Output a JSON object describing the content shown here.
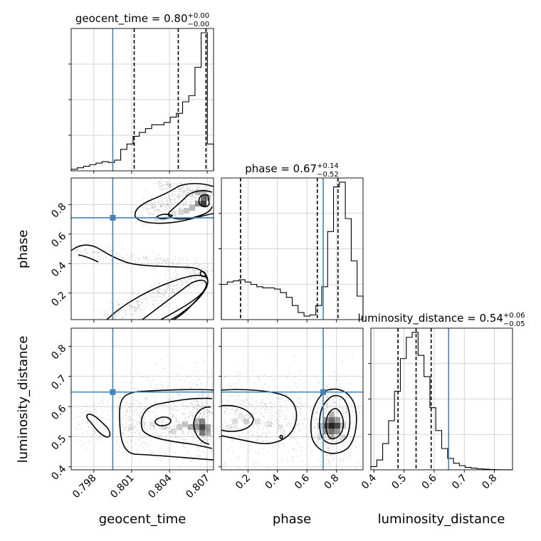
{
  "chart_data": {
    "type": "corner",
    "parameters": [
      {
        "key": "geocent_time",
        "label": "geocent_time",
        "range": [
          0.7962,
          0.8075
        ],
        "ticks": [
          0.798,
          0.801,
          0.804,
          0.807
        ],
        "tick_labels": [
          "0.798",
          "0.801",
          "0.804",
          "0.807"
        ],
        "truth": 0.7995,
        "quantiles": [
          0.8012,
          0.8047,
          0.8069
        ],
        "title": {
          "name": "geocent_time",
          "median": "0.80",
          "plus": "+0.00",
          "minus": "−0.00"
        }
      },
      {
        "key": "phase",
        "label": "phase",
        "range": [
          0.02,
          0.98
        ],
        "ticks": [
          0.2,
          0.4,
          0.6,
          0.8
        ],
        "tick_labels": [
          "0.2",
          "0.4",
          "0.6",
          "0.8"
        ],
        "truth": 0.71,
        "quantiles": [
          0.15,
          0.67,
          0.81
        ],
        "title": {
          "name": "phase",
          "median": "0.67",
          "plus": "+0.14",
          "minus": "−0.52"
        }
      },
      {
        "key": "luminosity_distance",
        "label": "luminosity_distance",
        "range": [
          0.39,
          0.86
        ],
        "ticks": [
          0.4,
          0.5,
          0.6,
          0.7,
          0.8
        ],
        "tick_labels": [
          "0.4",
          "0.5",
          "0.6",
          "0.7",
          "0.8"
        ],
        "truth": 0.648,
        "quantiles": [
          0.48,
          0.54,
          0.59
        ],
        "title": {
          "name": "luminosity_distance",
          "median": "0.54",
          "plus": "+0.06",
          "minus": "−0.05"
        }
      }
    ],
    "histograms": {
      "geocent_time": {
        "counts": [
          0.02,
          0.04,
          0.06,
          0.08,
          0.1,
          0.12,
          0.11,
          0.14,
          0.28,
          0.35,
          0.45,
          0.5,
          0.55,
          0.6,
          0.6,
          0.63,
          0.7,
          0.75,
          0.9,
          0.98,
          1.35,
          1.8,
          0.35
        ]
      },
      "phase": {
        "counts": [
          0.3,
          0.32,
          0.33,
          0.34,
          0.32,
          0.3,
          0.28,
          0.27,
          0.27,
          0.26,
          0.23,
          0.19,
          0.12,
          0.06,
          0.03,
          0.04,
          0.12,
          0.28,
          0.75,
          1.13,
          1.17,
          0.86,
          0.5,
          0.2
        ]
      },
      "luminosity_distance": {
        "counts": [
          0.02,
          0.06,
          0.16,
          0.3,
          0.48,
          0.68,
          0.81,
          0.84,
          0.7,
          0.57,
          0.38,
          0.24,
          0.13,
          0.07,
          0.04,
          0.025,
          0.015,
          0.01,
          0.006,
          0.004,
          0.002,
          0.001,
          0.0005,
          0.0002
        ]
      }
    }
  }
}
